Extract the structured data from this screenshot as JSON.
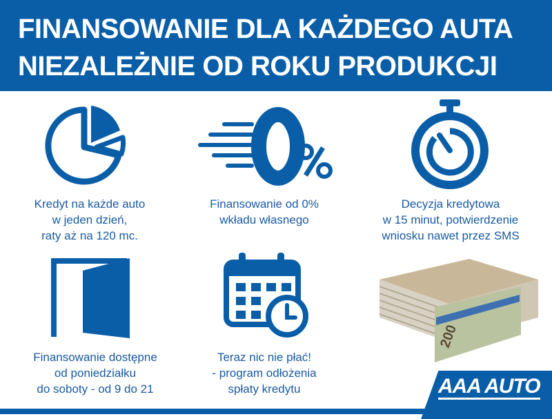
{
  "header": {
    "line1": "FINANSOWANIE DLA KAŻDEGO AUTA",
    "line2": "NIEZALEŻNIE OD ROKU PRODUKCJI"
  },
  "features": [
    {
      "icon": "pie-chart-icon",
      "lines": [
        "Kredyt na każde auto",
        "w jeden dzień,",
        "raty aż na 120 mc."
      ]
    },
    {
      "icon": "zero-percent-icon",
      "lines": [
        "Finansowanie od 0%",
        "wkładu własnego"
      ]
    },
    {
      "icon": "stopwatch-icon",
      "lines": [
        "Decyzja kredytowa",
        "w 15 minut, potwierdzenie",
        "wniosku nawet przez SMS"
      ]
    },
    {
      "icon": "open-door-icon",
      "lines": [
        "Finansowanie dostępne",
        "od poniedziałku",
        "do soboty - od 9 do 21"
      ]
    },
    {
      "icon": "calendar-clock-icon",
      "lines": [
        "Teraz nic nie płać!",
        "- program odłożenia",
        "spłaty kredytu"
      ]
    },
    {
      "icon": "banknotes-stack-icon",
      "lines": []
    }
  ],
  "logo": {
    "text": "AAA AUTO"
  },
  "colors": {
    "brand_blue": "#0a5ea8",
    "text_blue": "#1a5aa0"
  }
}
